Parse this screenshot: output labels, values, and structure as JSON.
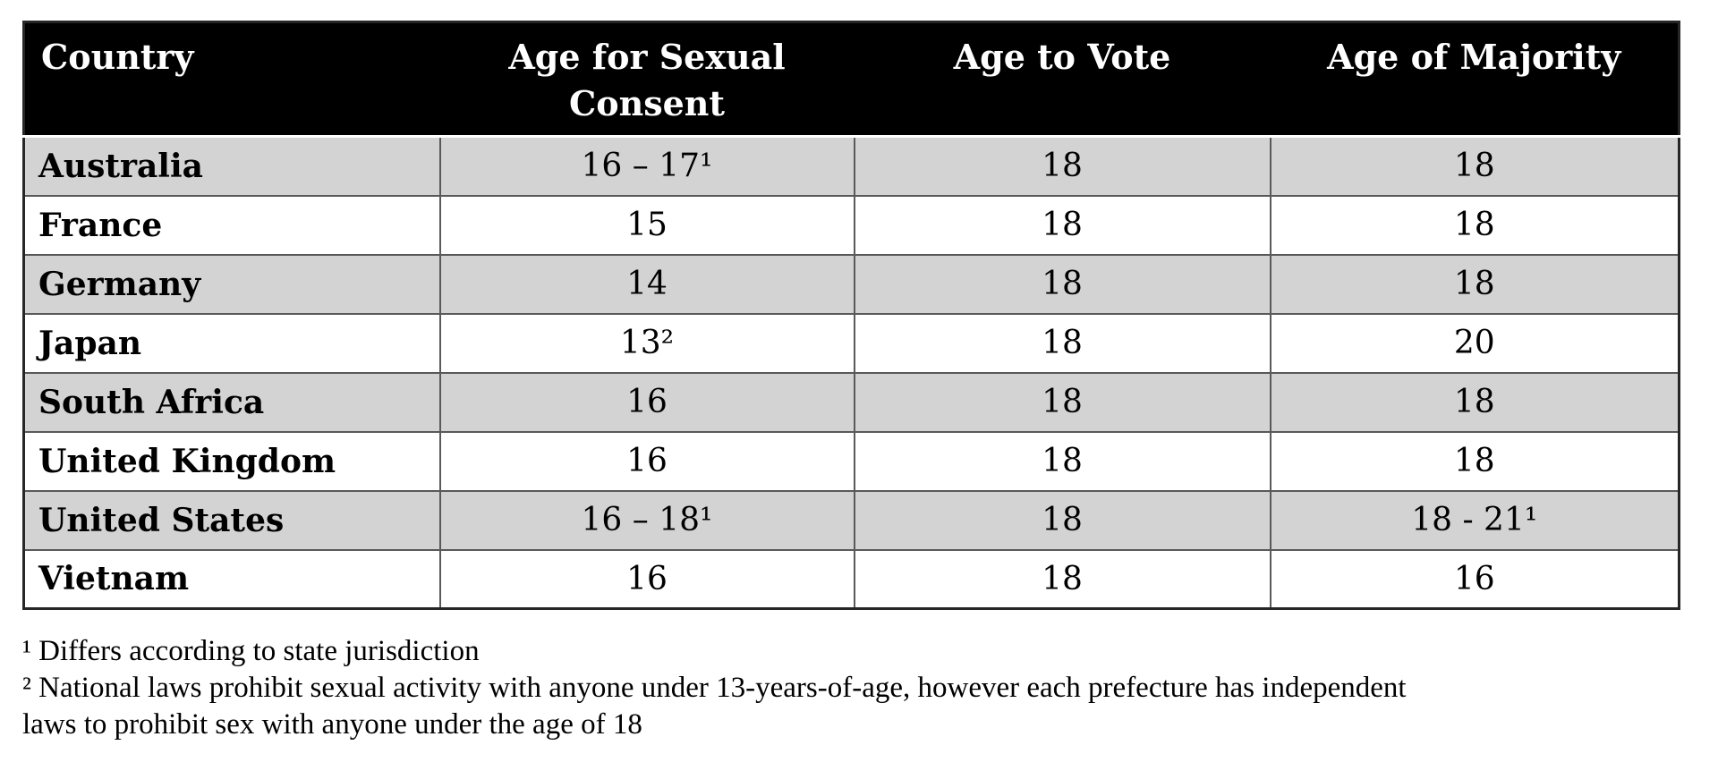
{
  "table": {
    "columns": [
      "Country",
      "Age for Sexual Consent",
      "Age to Vote",
      "Age of Majority"
    ],
    "rows": [
      {
        "country": "Australia",
        "consent": "16 – 17¹",
        "vote": "18",
        "majority": "18"
      },
      {
        "country": "France",
        "consent": "15",
        "vote": "18",
        "majority": "18"
      },
      {
        "country": "Germany",
        "consent": "14",
        "vote": "18",
        "majority": "18"
      },
      {
        "country": "Japan",
        "consent": "13²",
        "vote": "18",
        "majority": "20"
      },
      {
        "country": "South Africa",
        "consent": "16",
        "vote": "18",
        "majority": "18"
      },
      {
        "country": "United Kingdom",
        "consent": "16",
        "vote": "18",
        "majority": "18"
      },
      {
        "country": "United States",
        "consent": "16 – 18¹",
        "vote": "18",
        "majority": "18 - 21¹"
      },
      {
        "country": "Vietnam",
        "consent": "16",
        "vote": "18",
        "majority": "16"
      }
    ]
  },
  "footnote_lines": [
    "¹ Differs according to state jurisdiction",
    "² National laws prohibit sexual activity with anyone under 13-years-of-age, however each prefecture has independent",
    "laws to prohibit sex with anyone under the age of 18"
  ],
  "colors": {
    "header_bg": "#000000",
    "header_text": "#ffffff",
    "row_alt_bg": "#d3d3d3",
    "row_bg": "#ffffff",
    "cell_border": "#595959",
    "outer_border": "#262626"
  }
}
